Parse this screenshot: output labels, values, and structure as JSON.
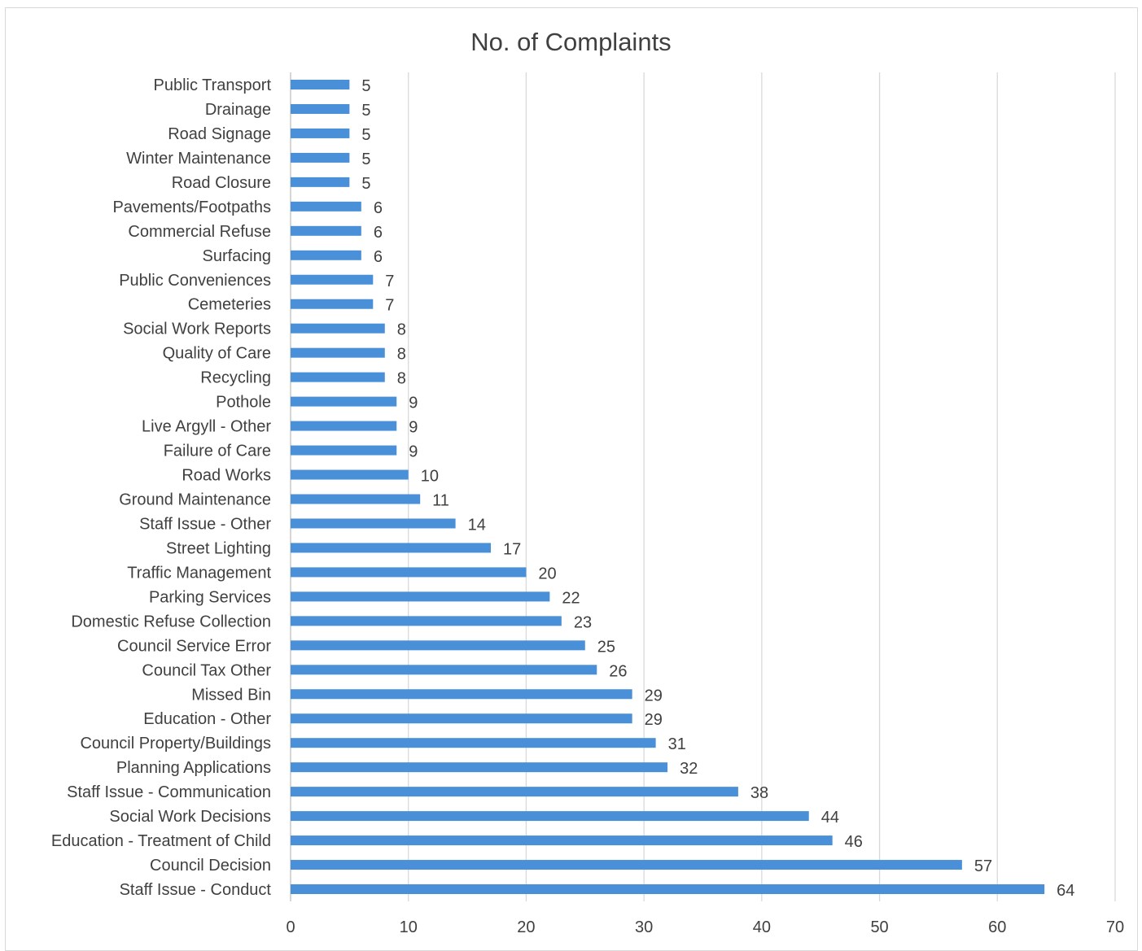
{
  "chart_data": {
    "type": "bar",
    "orientation": "horizontal",
    "title": "No. of Complaints",
    "xlabel": "",
    "ylabel": "",
    "xlim": [
      0,
      70
    ],
    "xticks": [
      0,
      10,
      20,
      30,
      40,
      50,
      60,
      70
    ],
    "grid": "vertical",
    "legend": "none",
    "bar_color": "#4a90d9",
    "categories": [
      "Public Transport",
      "Drainage",
      "Road Signage",
      "Winter Maintenance",
      "Road Closure",
      "Pavements/Footpaths",
      "Commercial Refuse",
      "Surfacing",
      "Public Conveniences",
      "Cemeteries",
      "Social Work Reports",
      "Quality of Care",
      "Recycling",
      "Pothole",
      "Live Argyll - Other",
      "Failure of Care",
      "Road Works",
      "Ground Maintenance",
      "Staff Issue - Other",
      "Street Lighting",
      "Traffic Management",
      "Parking Services",
      "Domestic Refuse Collection",
      "Council Service Error",
      "Council Tax Other",
      "Missed Bin",
      "Education - Other",
      "Council Property/Buildings",
      "Planning Applications",
      "Staff Issue - Communication",
      "Social Work Decisions",
      "Education - Treatment of Child",
      "Council Decision",
      "Staff Issue - Conduct"
    ],
    "values": [
      5,
      5,
      5,
      5,
      5,
      6,
      6,
      6,
      7,
      7,
      8,
      8,
      8,
      9,
      9,
      9,
      10,
      11,
      14,
      17,
      20,
      22,
      23,
      25,
      26,
      29,
      29,
      31,
      32,
      38,
      44,
      46,
      57,
      64
    ]
  }
}
